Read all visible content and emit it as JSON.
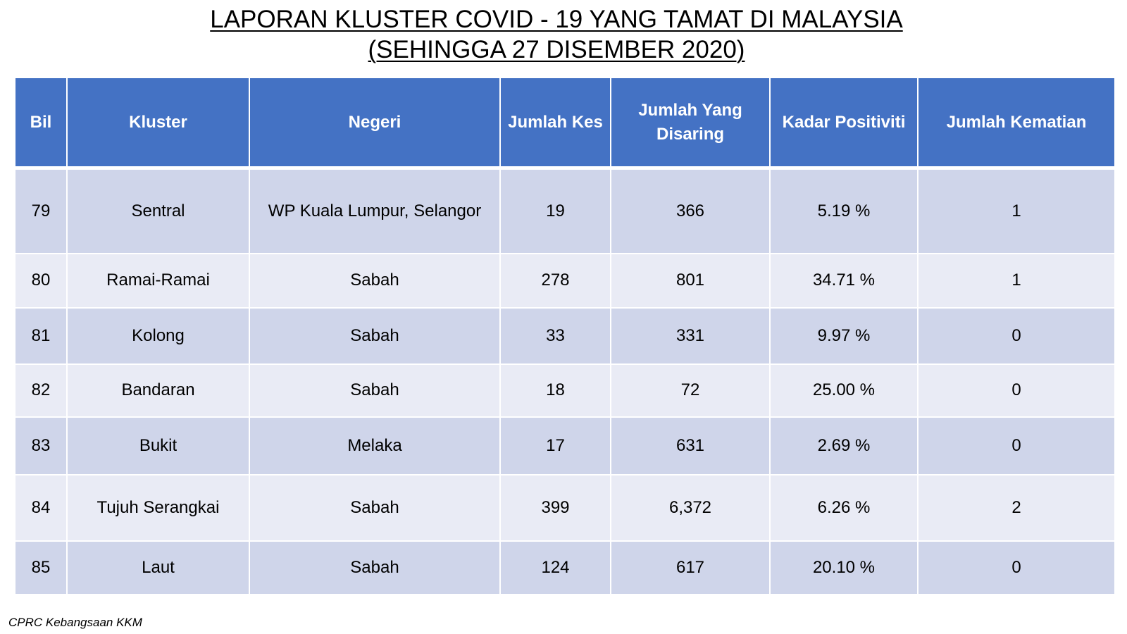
{
  "title": {
    "line1": "LAPORAN KLUSTER COVID - 19 YANG TAMAT DI MALAYSIA",
    "line2": "(SEHINGGA 27 DISEMBER 2020)"
  },
  "table": {
    "headers": {
      "bil": "Bil",
      "kluster": "Kluster",
      "negeri": "Negeri",
      "jumlah_kes": "Jumlah Kes",
      "jumlah_disaring": "Jumlah Yang Disaring",
      "kadar_positiviti": "Kadar Positiviti",
      "jumlah_kematian": "Jumlah Kematian"
    },
    "rows": [
      {
        "bil": "79",
        "kluster": "Sentral",
        "negeri": "WP Kuala Lumpur, Selangor",
        "jumlah_kes": "19",
        "jumlah_disaring": "366",
        "kadar_positiviti": "5.19 %",
        "jumlah_kematian": "1"
      },
      {
        "bil": "80",
        "kluster": "Ramai-Ramai",
        "negeri": "Sabah",
        "jumlah_kes": "278",
        "jumlah_disaring": "801",
        "kadar_positiviti": "34.71 %",
        "jumlah_kematian": "1"
      },
      {
        "bil": "81",
        "kluster": "Kolong",
        "negeri": "Sabah",
        "jumlah_kes": "33",
        "jumlah_disaring": "331",
        "kadar_positiviti": "9.97 %",
        "jumlah_kematian": "0"
      },
      {
        "bil": "82",
        "kluster": "Bandaran",
        "negeri": "Sabah",
        "jumlah_kes": "18",
        "jumlah_disaring": "72",
        "kadar_positiviti": "25.00 %",
        "jumlah_kematian": "0"
      },
      {
        "bil": "83",
        "kluster": "Bukit",
        "negeri": "Melaka",
        "jumlah_kes": "17",
        "jumlah_disaring": "631",
        "kadar_positiviti": "2.69 %",
        "jumlah_kematian": "0"
      },
      {
        "bil": "84",
        "kluster": "Tujuh Serangkai",
        "negeri": "Sabah",
        "jumlah_kes": "399",
        "jumlah_disaring": "6,372",
        "kadar_positiviti": "6.26 %",
        "jumlah_kematian": "2"
      },
      {
        "bil": "85",
        "kluster": "Laut",
        "negeri": "Sabah",
        "jumlah_kes": "124",
        "jumlah_disaring": "617",
        "kadar_positiviti": "20.10 %",
        "jumlah_kematian": "0"
      }
    ]
  },
  "footer": {
    "source": "CPRC Kebangsaan KKM"
  },
  "colors": {
    "header_bg": "#4472c4",
    "row_dark": "#cfd5ea",
    "row_light": "#e9ebf5"
  }
}
